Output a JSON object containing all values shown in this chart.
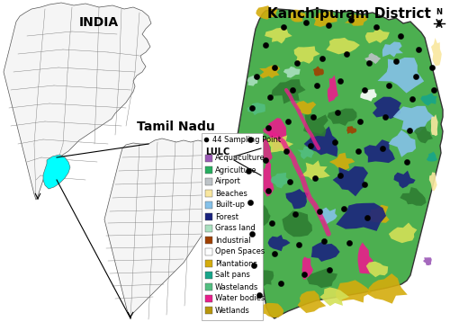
{
  "india_label": "INDIA",
  "tamilnadu_label": "Tamil Nadu",
  "kanchipuram_label": "Kanchipuram District",
  "legend_title": "LULC",
  "sampling_label": "44 Sampling Point",
  "lulc_categories": [
    "Acquaculture",
    "Agriculture",
    "Airport",
    "Beaches",
    "Built-up",
    "Forest",
    "Grass land",
    "Industrial",
    "Open Spaces",
    "Plantations",
    "Salt pans",
    "Wastelands",
    "Water bodies",
    "Wetlands"
  ],
  "lulc_colors": [
    "#9B59B6",
    "#27AE60",
    "#BDC3C7",
    "#F9E79F",
    "#85C1E9",
    "#1A237E",
    "#A9DFBF",
    "#A04000",
    "#FDFEFE",
    "#D4AC0D",
    "#17A589",
    "#52BE80",
    "#E91E8C",
    "#B7950B"
  ],
  "bg_color": "#FFFFFF",
  "font_size_india": 10,
  "font_size_tn": 10,
  "font_size_kanchi": 11,
  "font_size_legend": 6
}
